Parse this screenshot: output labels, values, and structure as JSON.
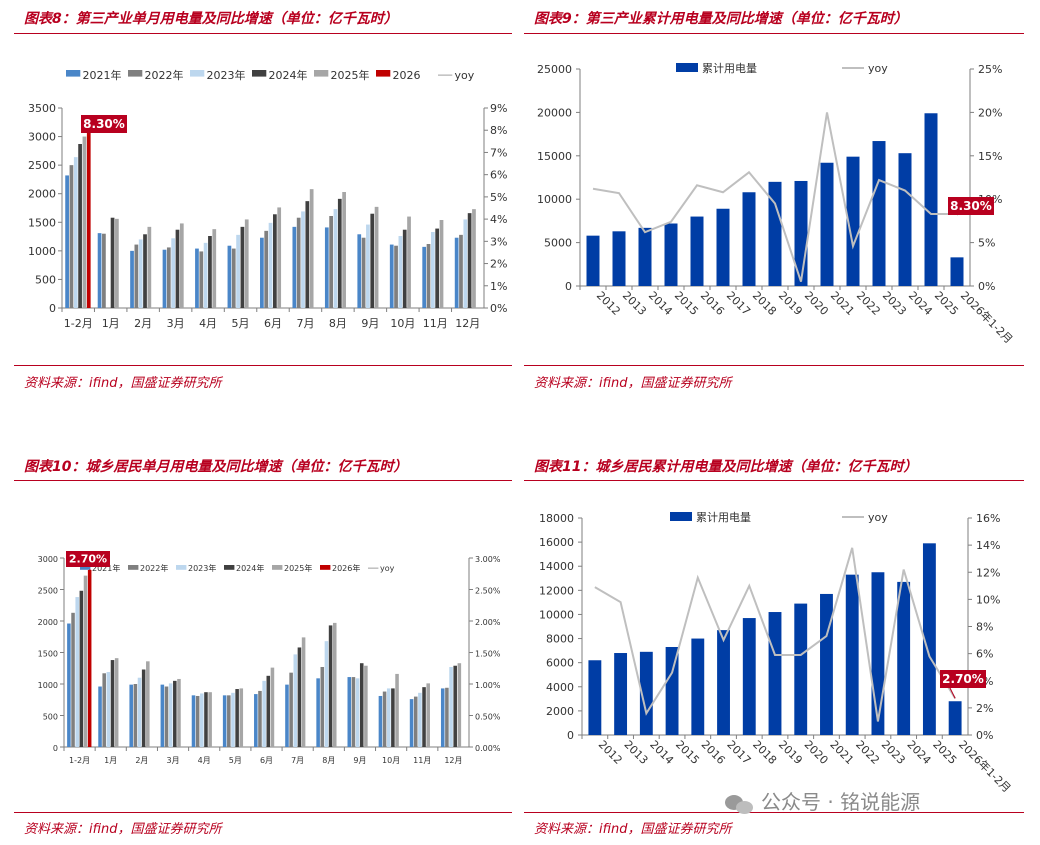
{
  "panels": [
    {
      "title": "图表8：第三产业单月用电量及同比增速（单位：亿千瓦时）",
      "source": "资料来源：ifind，国盛证券研究所"
    },
    {
      "title": "图表9：第三产业累计用电量及同比增速（单位：亿千瓦时）",
      "source": "资料来源：ifind，国盛证券研究所"
    },
    {
      "title": "图表10：城乡居民单月用电量及同比增速（单位：亿千瓦时）",
      "source": "资料来源：ifind，国盛证券研究所"
    },
    {
      "title": "图表11：城乡居民累计用电量及同比增速（单位：亿千瓦时）",
      "source": "资料来源：ifind，国盛证券研究所"
    }
  ],
  "watermark": "公众号 · 铭说能源",
  "colors": {
    "accent": "#b8001f",
    "bar_blue": "#003da5",
    "yoy_line": "#bfbfbf",
    "y2021": "#4a86c8",
    "y2022": "#7f7f7f",
    "y2023": "#bdd7ee",
    "y2024": "#404040",
    "y2025": "#a6a6a6",
    "y2026": "#c00000"
  },
  "chart_data": [
    {
      "type": "bar",
      "categories": [
        "1-2月",
        "1月",
        "2月",
        "3月",
        "4月",
        "5月",
        "6月",
        "7月",
        "8月",
        "9月",
        "10月",
        "11月",
        "12月"
      ],
      "series": [
        {
          "name": "2021年",
          "values": [
            2320,
            1310,
            1000,
            1020,
            1040,
            1090,
            1230,
            1420,
            1410,
            1290,
            1110,
            1070,
            1230
          ]
        },
        {
          "name": "2022年",
          "values": [
            2500,
            1300,
            1110,
            1060,
            990,
            1040,
            1350,
            1580,
            1610,
            1230,
            1090,
            1120,
            1280
          ]
        },
        {
          "name": "2023年",
          "values": [
            2640,
            null,
            1200,
            1220,
            1140,
            1280,
            1490,
            1690,
            1730,
            1460,
            1260,
            1330,
            1550
          ]
        },
        {
          "name": "2024年",
          "values": [
            2870,
            1580,
            1290,
            1370,
            1260,
            1420,
            1640,
            1870,
            1910,
            1650,
            1370,
            1390,
            1660
          ]
        },
        {
          "name": "2025年",
          "values": [
            3000,
            1560,
            1420,
            1480,
            1380,
            1550,
            1760,
            2080,
            2030,
            1770,
            1600,
            1540,
            1730
          ]
        },
        {
          "name": "2026",
          "values": [
            3250,
            null,
            null,
            null,
            null,
            null,
            null,
            null,
            null,
            null,
            null,
            null,
            null
          ]
        }
      ],
      "line": {
        "name": "yoy",
        "values": []
      },
      "yticks": [
        "0",
        "500",
        "1000",
        "1500",
        "2000",
        "2500",
        "3000",
        "3500"
      ],
      "y2ticks": [
        "0%",
        "1%",
        "2%",
        "3%",
        "4%",
        "5%",
        "6%",
        "7%",
        "8%",
        "9%"
      ],
      "ylim": [
        0,
        3500
      ],
      "y2lim": [
        0,
        9
      ],
      "annotation": "8.30%",
      "legend": "top"
    },
    {
      "type": "bar",
      "categories": [
        "2012",
        "2013",
        "2014",
        "2015",
        "2016",
        "2017",
        "2018",
        "2019",
        "2020",
        "2021",
        "2022",
        "2023",
        "2024",
        "2025",
        "2026年1-2月"
      ],
      "series": [
        {
          "name": "累计用电量",
          "values": [
            5800,
            6300,
            6700,
            7200,
            8000,
            8900,
            10800,
            12000,
            12100,
            14200,
            14900,
            16700,
            15300,
            19900,
            3300
          ]
        }
      ],
      "line": {
        "name": "yoy",
        "values": [
          11.2,
          10.7,
          6.2,
          7.4,
          11.6,
          10.8,
          13.1,
          9.5,
          0.5,
          20.0,
          4.6,
          12.2,
          11.0,
          8.3,
          8.3
        ]
      },
      "yticks": [
        "0",
        "5000",
        "10000",
        "15000",
        "20000",
        "25000"
      ],
      "y2ticks": [
        "0%",
        "5%",
        "10%",
        "15%",
        "20%",
        "25%"
      ],
      "ylim": [
        0,
        25000
      ],
      "y2lim": [
        0,
        25
      ],
      "annotation": "8.30%",
      "legend": "top"
    },
    {
      "type": "bar",
      "categories": [
        "1-2月",
        "1月",
        "2月",
        "3月",
        "4月",
        "5月",
        "6月",
        "7月",
        "8月",
        "9月",
        "10月",
        "11月",
        "12月"
      ],
      "series": [
        {
          "name": "2021年",
          "values": [
            1960,
            960,
            990,
            990,
            820,
            820,
            840,
            990,
            1090,
            1110,
            810,
            760,
            930
          ]
        },
        {
          "name": "2022年",
          "values": [
            2130,
            1170,
            1000,
            960,
            810,
            820,
            890,
            1180,
            1270,
            1110,
            880,
            800,
            940
          ]
        },
        {
          "name": "2023年",
          "values": [
            2380,
            1190,
            1100,
            1010,
            850,
            860,
            1050,
            1470,
            1680,
            1090,
            930,
            860,
            1270
          ]
        },
        {
          "name": "2024年",
          "values": [
            2480,
            1380,
            1230,
            1050,
            870,
            920,
            1130,
            1580,
            1930,
            1330,
            930,
            950,
            1290
          ]
        },
        {
          "name": "2025年",
          "values": [
            2720,
            1410,
            1360,
            1080,
            870,
            930,
            1260,
            1740,
            1970,
            1290,
            1160,
            1010,
            1330
          ]
        },
        {
          "name": "2026",
          "values": [
            2810,
            null,
            null,
            null,
            null,
            null,
            null,
            null,
            null,
            null,
            null,
            null,
            null
          ]
        }
      ],
      "line": {
        "name": "yoy",
        "values": []
      },
      "yticks": [
        "0",
        "500",
        "1000",
        "1500",
        "2000",
        "2500",
        "3000"
      ],
      "y2ticks": [
        "0.00%",
        "0.50%",
        "1.00%",
        "1.50%",
        "2.00%",
        "2.50%",
        "3.00%"
      ],
      "ylim": [
        0,
        3000
      ],
      "y2lim": [
        0,
        3
      ],
      "annotation": "2.70%",
      "legend": "top",
      "legend_names": [
        "2021年",
        "2022年",
        "2023年",
        "2024年",
        "2025年",
        "2026年",
        "yoy"
      ]
    },
    {
      "type": "bar",
      "categories": [
        "2012",
        "2013",
        "2014",
        "2015",
        "2016",
        "2017",
        "2018",
        "2019",
        "2020",
        "2021",
        "2022",
        "2023",
        "2024",
        "2025",
        "2026年1-2月"
      ],
      "series": [
        {
          "name": "累计用电量",
          "values": [
            6200,
            6800,
            6900,
            7300,
            8000,
            8700,
            9700,
            10200,
            10900,
            11700,
            13300,
            13500,
            12700,
            15900,
            2800
          ]
        }
      ],
      "line": {
        "name": "yoy",
        "values": [
          10.9,
          9.8,
          1.6,
          4.6,
          11.6,
          7.0,
          11.0,
          5.9,
          5.9,
          7.3,
          13.8,
          1.0,
          12.2,
          5.8,
          2.7
        ]
      },
      "yticks": [
        "0",
        "2000",
        "4000",
        "6000",
        "8000",
        "10000",
        "12000",
        "14000",
        "16000",
        "18000"
      ],
      "y2ticks": [
        "0%",
        "2%",
        "4%",
        "6%",
        "8%",
        "10%",
        "12%",
        "14%",
        "16%"
      ],
      "ylim": [
        0,
        18000
      ],
      "y2lim": [
        0,
        16
      ],
      "annotation": "2.70%",
      "legend": "top"
    }
  ]
}
